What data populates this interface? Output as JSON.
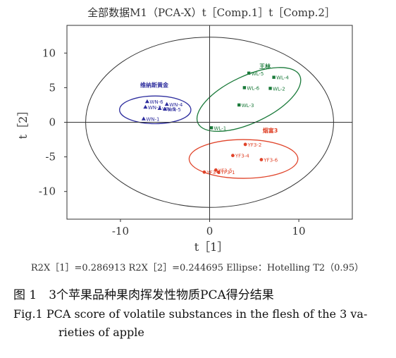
{
  "chart_data": {
    "type": "scatter",
    "title": "全部数据M1（PCA-X）t［Comp.1］t［Comp.2］",
    "xlabel": "t［1］",
    "ylabel": "t［2］",
    "xlim": [
      -16,
      16
    ],
    "ylim": [
      -14,
      14
    ],
    "xticks": [
      -10,
      0,
      10
    ],
    "yticks": [
      10,
      5,
      0,
      -5,
      -10
    ],
    "grid": false,
    "footer": "R2X［1］=0.286913  R2X［2］=0.244695  Ellipse：Hotelling T2（0.95）",
    "series": [
      {
        "name": "维纳斯黄金",
        "color": "#2e2e9e",
        "marker": "triangle",
        "points": [
          {
            "label": "WN-6",
            "x": -7.0,
            "y": 3.0
          },
          {
            "label": "WN-2",
            "x": -7.2,
            "y": 2.2
          },
          {
            "label": "WN-3",
            "x": -5.6,
            "y": 2.0
          },
          {
            "label": "WN-4",
            "x": -4.8,
            "y": 2.6
          },
          {
            "label": "WN-5",
            "x": -5.0,
            "y": 1.9
          },
          {
            "label": "WN-1",
            "x": -7.4,
            "y": 0.5
          }
        ]
      },
      {
        "name": "王林",
        "color": "#1a7a3a",
        "marker": "square",
        "points": [
          {
            "label": "WL-5",
            "x": 4.4,
            "y": 7.1
          },
          {
            "label": "WL-4",
            "x": 7.2,
            "y": 6.5
          },
          {
            "label": "WL-6",
            "x": 3.9,
            "y": 5.0
          },
          {
            "label": "WL-2",
            "x": 6.8,
            "y": 4.9
          },
          {
            "label": "WL-3",
            "x": 3.3,
            "y": 2.5
          },
          {
            "label": "WL-1",
            "x": 0.2,
            "y": -0.8
          }
        ]
      },
      {
        "name": "烟富3",
        "color": "#e0442a",
        "marker": "circle",
        "points": [
          {
            "label": "YF3-2",
            "x": 4.0,
            "y": -3.2
          },
          {
            "label": "YF3-4",
            "x": 2.6,
            "y": -4.8
          },
          {
            "label": "YF3-6",
            "x": 5.8,
            "y": -5.4
          },
          {
            "label": "YF3-3",
            "x": -0.6,
            "y": -7.2
          },
          {
            "label": "YF3-5",
            "x": 0.7,
            "y": -6.9
          },
          {
            "label": "YF3-1",
            "x": 1.0,
            "y": -7.2
          }
        ]
      }
    ],
    "ellipses": [
      {
        "name": "Hotelling T2 (0.95)",
        "cx": 0,
        "cy": 0,
        "rx": 13.9,
        "ry": 12.3,
        "color": "#333333"
      },
      {
        "group": "维纳斯黄金",
        "cx": -6.1,
        "cy": 1.8,
        "rx": 4.0,
        "ry": 2.0,
        "color": "#2e2e9e"
      },
      {
        "group": "王林",
        "cx": 4.4,
        "cy": 3.3,
        "rx": 6.3,
        "ry": 3.4,
        "angle": -25,
        "color": "#1a7a3a"
      },
      {
        "group": "烟富3",
        "cx": 3.8,
        "cy": -5.3,
        "rx": 6.1,
        "ry": 2.8,
        "color": "#e0442a"
      }
    ]
  },
  "captions": {
    "cn": "图 1　3个苹果品种果肉挥发性物质PCA得分结果",
    "en_line1": "Fig.1    PCA score of volatile substances in the flesh of the 3 va-",
    "en_line2": "rieties of apple"
  }
}
